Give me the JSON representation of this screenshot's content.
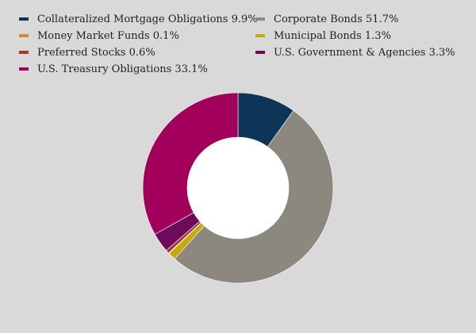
{
  "chart_data": {
    "type": "pie",
    "subtype": "donut",
    "legend_position": "top",
    "slices": [
      {
        "label": "Collateralized Mortgage Obligations",
        "value": 9.9,
        "display": "Collateralized Mortgage Obligations 9.9%",
        "color": "#0d3558"
      },
      {
        "label": "Corporate Bonds",
        "value": 51.7,
        "display": "Corporate Bonds 51.7%",
        "color": "#8c8880"
      },
      {
        "label": "Money Market Funds",
        "value": 0.1,
        "display": "Money Market Funds 0.1%",
        "color": "#d98a30"
      },
      {
        "label": "Municipal Bonds",
        "value": 1.3,
        "display": "Municipal Bonds 1.3%",
        "color": "#c9a80a"
      },
      {
        "label": "Preferred Stocks",
        "value": 0.6,
        "display": "Preferred Stocks 0.6%",
        "color": "#a33a2a"
      },
      {
        "label": "U.S. Government & Agencies",
        "value": 3.3,
        "display": "U.S. Government & Agencies 3.3%",
        "color": "#6e0a5a"
      },
      {
        "label": "U.S. Treasury Obligations",
        "value": 33.1,
        "display": "U.S. Treasury Obligations 33.1%",
        "color": "#a3005c"
      }
    ]
  }
}
